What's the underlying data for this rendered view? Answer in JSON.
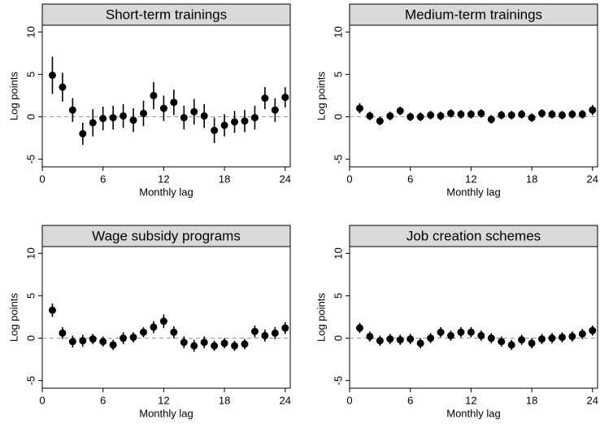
{
  "chart_data": [
    {
      "type": "scatter",
      "title": "Short-term trainings",
      "x_label": "Monthly lag",
      "y_label": "Log points",
      "x": [
        1,
        2,
        3,
        4,
        5,
        6,
        7,
        8,
        9,
        10,
        11,
        12,
        13,
        14,
        15,
        16,
        17,
        18,
        19,
        20,
        21,
        22,
        23,
        24
      ],
      "values": [
        4.9,
        3.5,
        0.8,
        -2.0,
        -0.7,
        -0.2,
        -0.1,
        0.1,
        -0.4,
        0.4,
        2.5,
        1.0,
        1.7,
        -0.1,
        0.6,
        0.1,
        -1.6,
        -1.0,
        -0.6,
        -0.5,
        -0.1,
        2.2,
        0.8,
        2.3
      ],
      "errors": [
        2.2,
        1.7,
        1.4,
        1.3,
        1.6,
        1.4,
        1.4,
        1.4,
        1.4,
        1.5,
        1.6,
        1.5,
        1.5,
        1.4,
        1.5,
        1.4,
        1.5,
        1.3,
        1.3,
        1.3,
        1.4,
        1.3,
        1.4,
        1.2
      ],
      "color": "#000000",
      "reference_line": 0,
      "xlim": [
        0,
        24.5
      ],
      "ylim": [
        -5.9,
        10.8
      ],
      "xticks": [
        0,
        6,
        12,
        18,
        24
      ],
      "yticks": [
        -5,
        0,
        5,
        10
      ]
    },
    {
      "type": "scatter",
      "title": "Medium-term trainings",
      "x_label": "Monthly lag",
      "y_label": "Log points",
      "x": [
        1,
        2,
        3,
        4,
        5,
        6,
        7,
        8,
        9,
        10,
        11,
        12,
        13,
        14,
        15,
        16,
        17,
        18,
        19,
        20,
        21,
        22,
        23,
        24
      ],
      "values": [
        1.0,
        0.1,
        -0.5,
        0.1,
        0.7,
        0.0,
        0.0,
        0.2,
        0.1,
        0.4,
        0.3,
        0.3,
        0.4,
        -0.3,
        0.2,
        0.2,
        0.3,
        -0.1,
        0.4,
        0.3,
        0.2,
        0.3,
        0.3,
        0.8
      ],
      "errors": [
        0.6,
        0.5,
        0.5,
        0.5,
        0.5,
        0.5,
        0.5,
        0.5,
        0.5,
        0.5,
        0.5,
        0.5,
        0.5,
        0.5,
        0.5,
        0.5,
        0.5,
        0.5,
        0.5,
        0.5,
        0.5,
        0.5,
        0.5,
        0.6
      ],
      "color": "#000000",
      "reference_line": 0,
      "xlim": [
        0,
        24.5
      ],
      "ylim": [
        -5.9,
        10.8
      ],
      "xticks": [
        0,
        6,
        12,
        18,
        24
      ],
      "yticks": [
        -5,
        0,
        5,
        10
      ]
    },
    {
      "type": "scatter",
      "title": "Wage subsidy programs",
      "x_label": "Monthly lag",
      "y_label": "Log points",
      "x": [
        1,
        2,
        3,
        4,
        5,
        6,
        7,
        8,
        9,
        10,
        11,
        12,
        13,
        14,
        15,
        16,
        17,
        18,
        19,
        20,
        21,
        22,
        23,
        24
      ],
      "values": [
        3.3,
        0.6,
        -0.4,
        -0.3,
        -0.1,
        -0.4,
        -0.8,
        0.0,
        0.1,
        0.7,
        1.3,
        2.0,
        0.7,
        -0.5,
        -0.9,
        -0.5,
        -0.9,
        -0.6,
        -0.9,
        -0.7,
        0.8,
        0.3,
        0.6,
        1.2
      ],
      "errors": [
        0.8,
        0.7,
        0.7,
        0.7,
        0.6,
        0.6,
        0.6,
        0.7,
        0.6,
        0.6,
        0.7,
        0.8,
        0.7,
        0.7,
        0.7,
        0.7,
        0.6,
        0.6,
        0.6,
        0.6,
        0.7,
        0.7,
        0.7,
        0.7
      ],
      "color": "#000000",
      "reference_line": 0,
      "xlim": [
        0,
        24.5
      ],
      "ylim": [
        -5.9,
        10.8
      ],
      "xticks": [
        0,
        6,
        12,
        18,
        24
      ],
      "yticks": [
        -5,
        0,
        5,
        10
      ]
    },
    {
      "type": "scatter",
      "title": "Job creation schemes",
      "x_label": "Monthly lag",
      "y_label": "Log points",
      "x": [
        1,
        2,
        3,
        4,
        5,
        6,
        7,
        8,
        9,
        10,
        11,
        12,
        13,
        14,
        15,
        16,
        17,
        18,
        19,
        20,
        21,
        22,
        23,
        24
      ],
      "values": [
        1.2,
        0.2,
        -0.3,
        -0.1,
        -0.2,
        -0.1,
        -0.6,
        0.0,
        0.7,
        0.3,
        0.7,
        0.7,
        0.3,
        0.0,
        -0.4,
        -0.8,
        -0.2,
        -0.6,
        -0.1,
        0.0,
        0.1,
        0.2,
        0.5,
        0.9
      ],
      "errors": [
        0.6,
        0.6,
        0.6,
        0.6,
        0.6,
        0.6,
        0.6,
        0.6,
        0.6,
        0.6,
        0.6,
        0.6,
        0.6,
        0.6,
        0.6,
        0.6,
        0.6,
        0.6,
        0.6,
        0.6,
        0.6,
        0.6,
        0.6,
        0.6
      ],
      "color": "#000000",
      "reference_line": 0,
      "xlim": [
        0,
        24.5
      ],
      "ylim": [
        -5.9,
        10.8
      ],
      "xticks": [
        0,
        6,
        12,
        18,
        24
      ],
      "yticks": [
        -5,
        0,
        5,
        10
      ]
    }
  ]
}
